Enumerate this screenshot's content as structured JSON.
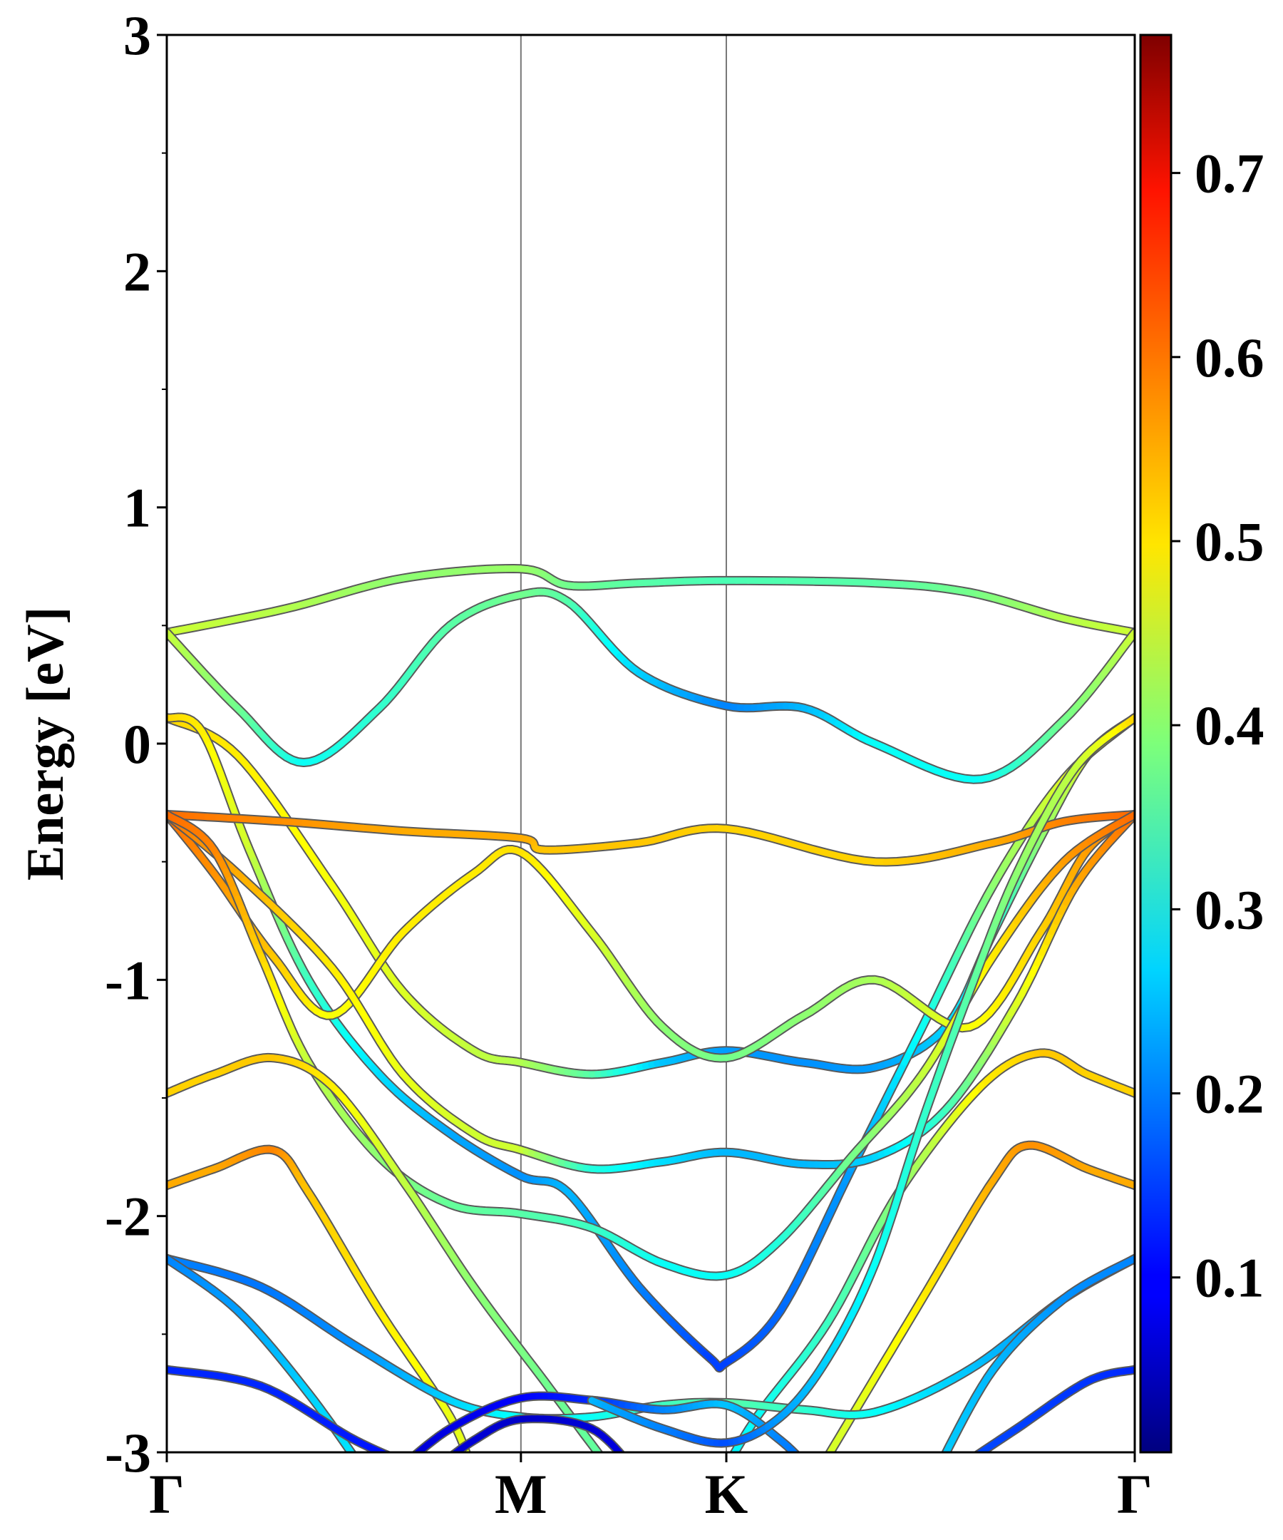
{
  "chart_data": {
    "type": "line",
    "title": "",
    "xlabel": "",
    "ylabel": "Energy [eV]",
    "ylim": [
      -3,
      3
    ],
    "x_ticks": [
      {
        "label": "Γ",
        "k": 0.0
      },
      {
        "label": "M",
        "k": 1.5
      },
      {
        "label": "K",
        "k": 2.37
      },
      {
        "label": "Γ",
        "k": 4.1
      }
    ],
    "y_ticks": [
      -3,
      -2,
      -1,
      0,
      1,
      2,
      3
    ],
    "y_tick_labels": [
      "-3",
      "-2",
      "-1",
      "0",
      "1",
      "2",
      "3"
    ],
    "colorbar": {
      "min": 0.005,
      "max": 0.775,
      "ticks": [
        0.1,
        0.2,
        0.3,
        0.4,
        0.5,
        0.6,
        0.7
      ],
      "tick_labels": [
        "0.1",
        "0.2",
        "0.3",
        "0.4",
        "0.5",
        "0.6",
        "0.7"
      ],
      "colormap": "jet"
    },
    "series": [
      {
        "name": "band-a",
        "points": [
          [
            0.0,
            0.47,
            0.45
          ],
          [
            0.5,
            0.57,
            0.43
          ],
          [
            1.0,
            0.7,
            0.4
          ],
          [
            1.5,
            0.74,
            0.41
          ],
          [
            1.7,
            0.67,
            0.38
          ],
          [
            2.0,
            0.68,
            0.36
          ],
          [
            2.37,
            0.69,
            0.35
          ],
          [
            3.0,
            0.68,
            0.36
          ],
          [
            3.4,
            0.64,
            0.38
          ],
          [
            3.8,
            0.53,
            0.43
          ],
          [
            4.1,
            0.47,
            0.45
          ]
        ]
      },
      {
        "name": "band-b",
        "points": [
          [
            0.0,
            0.47,
            0.45
          ],
          [
            0.3,
            0.15,
            0.38
          ],
          [
            0.58,
            -0.08,
            0.3
          ],
          [
            0.9,
            0.15,
            0.33
          ],
          [
            1.2,
            0.5,
            0.36
          ],
          [
            1.5,
            0.63,
            0.38
          ],
          [
            1.7,
            0.6,
            0.36
          ],
          [
            2.0,
            0.3,
            0.26
          ],
          [
            2.37,
            0.16,
            0.2
          ],
          [
            2.7,
            0.15,
            0.24
          ],
          [
            3.0,
            0.0,
            0.3
          ],
          [
            3.45,
            -0.15,
            0.3
          ],
          [
            3.8,
            0.1,
            0.38
          ],
          [
            4.1,
            0.47,
            0.45
          ]
        ]
      },
      {
        "name": "band-c",
        "points": [
          [
            0.0,
            0.11,
            0.52
          ],
          [
            0.3,
            -0.05,
            0.5
          ],
          [
            0.7,
            -0.6,
            0.48
          ],
          [
            1.0,
            -1.05,
            0.46
          ],
          [
            1.3,
            -1.3,
            0.44
          ],
          [
            1.5,
            -1.35,
            0.43
          ],
          [
            1.8,
            -1.4,
            0.36
          ],
          [
            2.1,
            -1.35,
            0.25
          ],
          [
            2.37,
            -1.3,
            0.22
          ],
          [
            2.7,
            -1.35,
            0.21
          ],
          [
            3.0,
            -1.37,
            0.22
          ],
          [
            3.3,
            -1.2,
            0.26
          ],
          [
            3.5,
            -0.8,
            0.32
          ],
          [
            3.7,
            -0.4,
            0.4
          ],
          [
            3.9,
            -0.05,
            0.46
          ],
          [
            4.1,
            0.11,
            0.52
          ]
        ]
      },
      {
        "name": "band-d",
        "points": [
          [
            0.0,
            0.11,
            0.52
          ],
          [
            0.15,
            0.05,
            0.5
          ],
          [
            0.35,
            -0.45,
            0.45
          ],
          [
            0.6,
            -1.0,
            0.34
          ],
          [
            0.9,
            -1.4,
            0.27
          ],
          [
            1.2,
            -1.65,
            0.23
          ],
          [
            1.5,
            -1.83,
            0.21
          ],
          [
            1.7,
            -1.9,
            0.24
          ],
          [
            2.0,
            -2.3,
            0.2
          ],
          [
            2.3,
            -2.6,
            0.15
          ],
          [
            2.37,
            -2.62,
            0.15
          ],
          [
            2.6,
            -2.4,
            0.18
          ],
          [
            2.9,
            -1.8,
            0.22
          ],
          [
            3.2,
            -1.2,
            0.3
          ],
          [
            3.5,
            -0.6,
            0.4
          ],
          [
            3.8,
            -0.15,
            0.46
          ],
          [
            4.1,
            0.11,
            0.52
          ]
        ]
      },
      {
        "name": "band-e",
        "points": [
          [
            0.0,
            -0.3,
            0.6
          ],
          [
            0.5,
            -0.33,
            0.57
          ],
          [
            1.0,
            -0.37,
            0.55
          ],
          [
            1.5,
            -0.4,
            0.55
          ],
          [
            1.6,
            -0.45,
            0.53
          ],
          [
            2.0,
            -0.42,
            0.53
          ],
          [
            2.37,
            -0.36,
            0.52
          ],
          [
            3.0,
            -0.5,
            0.52
          ],
          [
            3.5,
            -0.42,
            0.55
          ],
          [
            3.8,
            -0.33,
            0.58
          ],
          [
            4.1,
            -0.3,
            0.6
          ]
        ]
      },
      {
        "name": "band-f",
        "points": [
          [
            0.0,
            -0.3,
            0.6
          ],
          [
            0.2,
            -0.55,
            0.57
          ],
          [
            0.45,
            -0.9,
            0.53
          ],
          [
            0.7,
            -1.15,
            0.48
          ],
          [
            1.0,
            -0.8,
            0.5
          ],
          [
            1.3,
            -0.55,
            0.5
          ],
          [
            1.5,
            -0.46,
            0.51
          ],
          [
            1.8,
            -0.8,
            0.46
          ],
          [
            2.1,
            -1.2,
            0.4
          ],
          [
            2.37,
            -1.33,
            0.38
          ],
          [
            2.7,
            -1.15,
            0.4
          ],
          [
            3.0,
            -1.0,
            0.42
          ],
          [
            3.4,
            -1.2,
            0.48
          ],
          [
            3.7,
            -0.8,
            0.52
          ],
          [
            3.9,
            -0.45,
            0.56
          ],
          [
            4.1,
            -0.3,
            0.6
          ]
        ]
      },
      {
        "name": "band-g",
        "points": [
          [
            0.0,
            -0.3,
            0.6
          ],
          [
            0.3,
            -0.55,
            0.55
          ],
          [
            0.7,
            -0.95,
            0.5
          ],
          [
            1.0,
            -1.4,
            0.47
          ],
          [
            1.3,
            -1.65,
            0.45
          ],
          [
            1.5,
            -1.72,
            0.45
          ],
          [
            1.8,
            -1.8,
            0.32
          ],
          [
            2.1,
            -1.77,
            0.27
          ],
          [
            2.37,
            -1.73,
            0.24
          ],
          [
            2.7,
            -1.78,
            0.24
          ],
          [
            3.0,
            -1.75,
            0.26
          ],
          [
            3.3,
            -1.55,
            0.34
          ],
          [
            3.6,
            -1.1,
            0.46
          ],
          [
            3.85,
            -0.6,
            0.55
          ],
          [
            4.1,
            -0.3,
            0.6
          ]
        ]
      },
      {
        "name": "band-h",
        "points": [
          [
            0.0,
            -0.3,
            0.6
          ],
          [
            0.2,
            -0.45,
            0.58
          ],
          [
            0.4,
            -0.9,
            0.52
          ],
          [
            0.6,
            -1.35,
            0.44
          ],
          [
            0.9,
            -1.75,
            0.4
          ],
          [
            1.2,
            -1.95,
            0.37
          ],
          [
            1.5,
            -1.99,
            0.36
          ],
          [
            1.8,
            -2.05,
            0.34
          ],
          [
            2.1,
            -2.2,
            0.3
          ],
          [
            2.37,
            -2.25,
            0.3
          ],
          [
            2.6,
            -2.1,
            0.32
          ],
          [
            2.9,
            -1.75,
            0.38
          ],
          [
            3.2,
            -1.4,
            0.44
          ],
          [
            3.5,
            -0.9,
            0.5
          ],
          [
            3.8,
            -0.5,
            0.56
          ],
          [
            4.1,
            -0.3,
            0.6
          ]
        ]
      },
      {
        "name": "band-i",
        "points": [
          [
            0.0,
            -1.48,
            0.52
          ],
          [
            0.2,
            -1.4,
            0.52
          ],
          [
            0.45,
            -1.33,
            0.53
          ],
          [
            0.7,
            -1.45,
            0.5
          ],
          [
            1.0,
            -1.85,
            0.44
          ],
          [
            1.3,
            -2.3,
            0.4
          ],
          [
            1.6,
            -2.7,
            0.38
          ],
          [
            1.9,
            -3.1,
            0.36
          ]
        ]
      },
      {
        "name": "band-j",
        "points": [
          [
            0.0,
            -1.87,
            0.55
          ],
          [
            0.2,
            -1.8,
            0.55
          ],
          [
            0.45,
            -1.72,
            0.58
          ],
          [
            0.6,
            -1.9,
            0.53
          ],
          [
            0.9,
            -2.4,
            0.5
          ],
          [
            1.2,
            -2.85,
            0.47
          ],
          [
            1.3,
            -3.1,
            0.46
          ]
        ]
      },
      {
        "name": "band-k",
        "points": [
          [
            4.1,
            -1.48,
            0.52
          ],
          [
            3.9,
            -1.4,
            0.52
          ],
          [
            3.7,
            -1.31,
            0.53
          ],
          [
            3.45,
            -1.45,
            0.5
          ],
          [
            3.1,
            -1.9,
            0.4
          ],
          [
            2.8,
            -2.45,
            0.34
          ],
          [
            2.5,
            -2.85,
            0.3
          ],
          [
            2.35,
            -3.1,
            0.28
          ]
        ]
      },
      {
        "name": "band-l",
        "points": [
          [
            4.1,
            -1.87,
            0.55
          ],
          [
            3.9,
            -1.8,
            0.55
          ],
          [
            3.65,
            -1.7,
            0.57
          ],
          [
            3.5,
            -1.85,
            0.55
          ],
          [
            3.2,
            -2.35,
            0.5
          ],
          [
            2.9,
            -2.85,
            0.46
          ],
          [
            2.75,
            -3.1,
            0.45
          ]
        ]
      },
      {
        "name": "band-m",
        "points": [
          [
            0.0,
            -2.18,
            0.2
          ],
          [
            0.4,
            -2.3,
            0.19
          ],
          [
            0.8,
            -2.55,
            0.21
          ],
          [
            1.2,
            -2.78,
            0.26
          ],
          [
            1.5,
            -2.85,
            0.3
          ],
          [
            1.8,
            -2.85,
            0.3
          ],
          [
            2.1,
            -2.8,
            0.34
          ],
          [
            2.37,
            -2.79,
            0.36
          ],
          [
            2.7,
            -2.82,
            0.33
          ],
          [
            3.0,
            -2.83,
            0.3
          ],
          [
            3.4,
            -2.65,
            0.25
          ],
          [
            3.8,
            -2.35,
            0.21
          ],
          [
            4.1,
            -2.18,
            0.2
          ]
        ]
      },
      {
        "name": "band-n",
        "points": [
          [
            0.0,
            -2.18,
            0.2
          ],
          [
            0.3,
            -2.4,
            0.22
          ],
          [
            0.6,
            -2.75,
            0.26
          ],
          [
            0.85,
            -3.1,
            0.28
          ]
        ]
      },
      {
        "name": "band-o",
        "points": [
          [
            4.1,
            -2.18,
            0.2
          ],
          [
            3.8,
            -2.35,
            0.21
          ],
          [
            3.5,
            -2.65,
            0.24
          ],
          [
            3.25,
            -3.1,
            0.26
          ]
        ]
      },
      {
        "name": "band-p",
        "points": [
          [
            0.0,
            -2.65,
            0.13
          ],
          [
            0.4,
            -2.72,
            0.13
          ],
          [
            0.8,
            -2.95,
            0.12
          ],
          [
            1.1,
            -3.08,
            0.1
          ]
        ]
      },
      {
        "name": "band-q",
        "points": [
          [
            0.95,
            -3.1,
            0.06
          ],
          [
            1.2,
            -2.9,
            0.08
          ],
          [
            1.5,
            -2.77,
            0.1
          ],
          [
            1.8,
            -2.78,
            0.13
          ],
          [
            2.1,
            -2.82,
            0.2
          ],
          [
            2.37,
            -2.8,
            0.25
          ],
          [
            2.6,
            -2.95,
            0.2
          ],
          [
            2.75,
            -3.1,
            0.18
          ]
        ]
      },
      {
        "name": "band-r",
        "points": [
          [
            1.1,
            -3.1,
            0.06
          ],
          [
            1.3,
            -2.95,
            0.07
          ],
          [
            1.5,
            -2.86,
            0.06
          ],
          [
            1.8,
            -2.9,
            0.07
          ],
          [
            2.0,
            -3.1,
            0.08
          ]
        ]
      },
      {
        "name": "band-s",
        "points": [
          [
            1.8,
            -2.78,
            0.24
          ],
          [
            2.1,
            -2.9,
            0.2
          ],
          [
            2.37,
            -2.96,
            0.16
          ],
          [
            2.6,
            -2.85,
            0.22
          ],
          [
            2.8,
            -2.6,
            0.26
          ],
          [
            3.0,
            -2.2,
            0.3
          ],
          [
            3.2,
            -1.6,
            0.33
          ],
          [
            3.4,
            -1.05,
            0.36
          ],
          [
            3.6,
            -0.55,
            0.4
          ],
          [
            3.85,
            -0.1,
            0.44
          ],
          [
            4.1,
            0.11,
            0.52
          ]
        ]
      },
      {
        "name": "band-t",
        "points": [
          [
            3.3,
            -3.1,
            0.16
          ],
          [
            3.6,
            -2.9,
            0.15
          ],
          [
            3.9,
            -2.7,
            0.14
          ],
          [
            4.1,
            -2.65,
            0.13
          ]
        ]
      }
    ]
  }
}
